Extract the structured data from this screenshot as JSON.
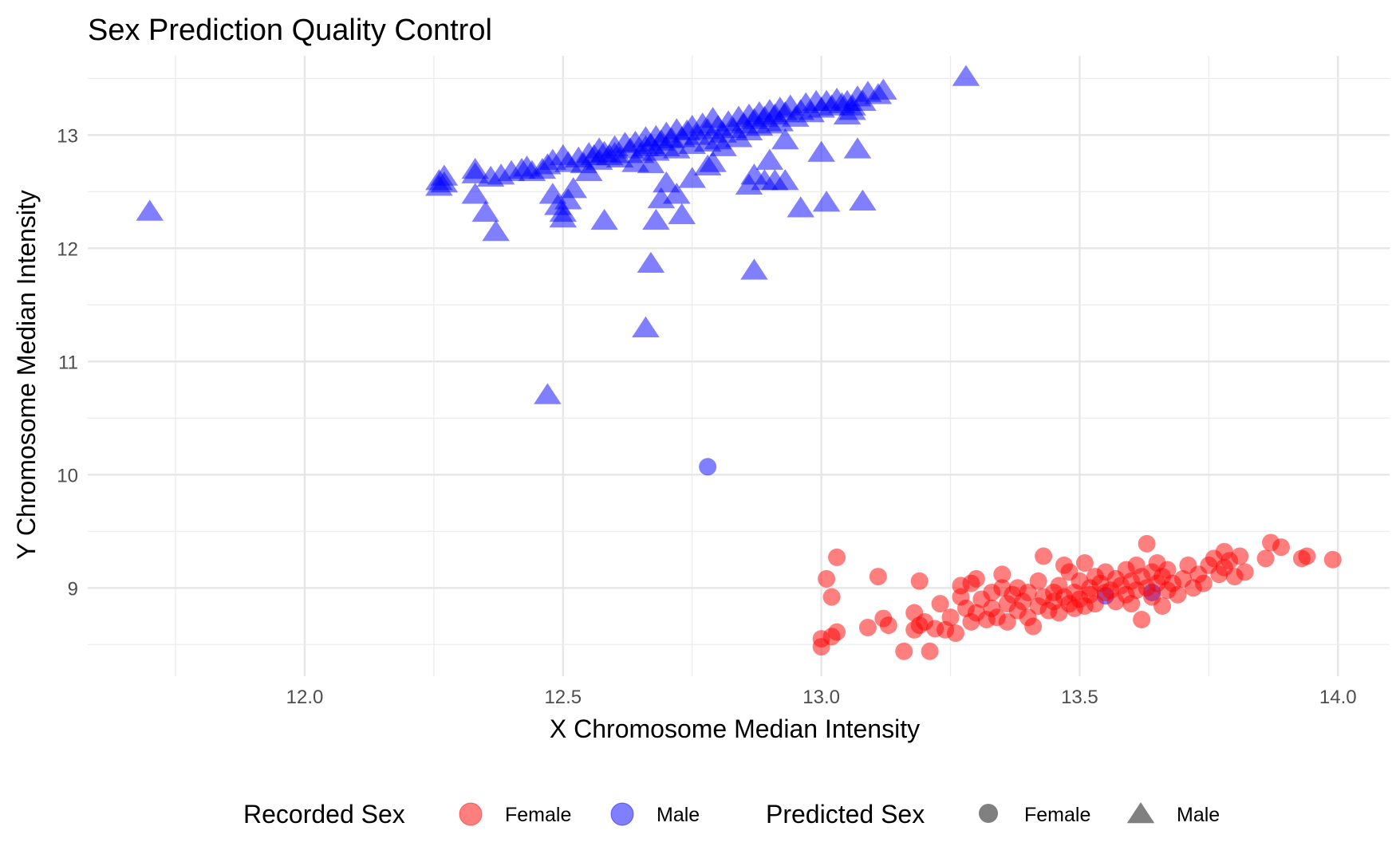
{
  "chart_data": {
    "type": "scatter",
    "title": "Sex Prediction Quality Control",
    "xlabel": "X Chromosome Median Intensity",
    "ylabel": "Y Chromosome Median Intensity",
    "xlim": [
      11.58,
      14.1
    ],
    "ylim": [
      8.22,
      13.7
    ],
    "x_ticks": [
      "12.0",
      "12.5",
      "13.0",
      "13.5",
      "14.0"
    ],
    "y_ticks": [
      "9",
      "10",
      "11",
      "12",
      "13"
    ],
    "x_tick_values": [
      12.0,
      12.5,
      13.0,
      13.5,
      14.0
    ],
    "y_tick_values": [
      9,
      10,
      11,
      12,
      13
    ],
    "grid": true,
    "legend_position": "bottom",
    "legends": [
      {
        "title": "Recorded Sex",
        "entries": [
          {
            "label": "Female",
            "color": "#ff0000",
            "shape": "circle"
          },
          {
            "label": "Male",
            "color": "#0000ff",
            "shape": "circle"
          }
        ]
      },
      {
        "title": "Predicted Sex",
        "entries": [
          {
            "label": "Female",
            "color": "#808080",
            "shape": "circle"
          },
          {
            "label": "Male",
            "color": "#808080",
            "shape": "triangle"
          }
        ]
      }
    ],
    "series": [
      {
        "recorded": "Male",
        "predicted": "Male",
        "color": "#0000ff",
        "shape": "triangle",
        "points": [
          [
            11.7,
            12.33
          ],
          [
            12.26,
            12.55
          ],
          [
            12.26,
            12.6
          ],
          [
            12.27,
            12.58
          ],
          [
            12.27,
            12.64
          ],
          [
            12.33,
            12.48
          ],
          [
            12.33,
            12.66
          ],
          [
            12.33,
            12.7
          ],
          [
            12.35,
            12.32
          ],
          [
            12.37,
            12.15
          ],
          [
            12.36,
            12.63
          ],
          [
            12.38,
            12.65
          ],
          [
            12.4,
            12.68
          ],
          [
            12.42,
            12.7
          ],
          [
            12.43,
            12.72
          ],
          [
            12.44,
            12.68
          ],
          [
            12.46,
            12.7
          ],
          [
            12.47,
            12.74
          ],
          [
            12.48,
            12.78
          ],
          [
            12.48,
            12.48
          ],
          [
            12.49,
            12.38
          ],
          [
            12.5,
            12.27
          ],
          [
            12.5,
            12.32
          ],
          [
            12.5,
            12.82
          ],
          [
            12.51,
            12.43
          ],
          [
            12.51,
            12.76
          ],
          [
            12.52,
            12.53
          ],
          [
            12.53,
            12.8
          ],
          [
            12.54,
            12.75
          ],
          [
            12.55,
            12.84
          ],
          [
            12.55,
            12.68
          ],
          [
            12.56,
            12.82
          ],
          [
            12.57,
            12.88
          ],
          [
            12.57,
            12.78
          ],
          [
            12.58,
            12.85
          ],
          [
            12.59,
            12.82
          ],
          [
            12.6,
            12.9
          ],
          [
            12.6,
            12.84
          ],
          [
            12.61,
            12.8
          ],
          [
            12.62,
            12.93
          ],
          [
            12.63,
            12.88
          ],
          [
            12.64,
            12.76
          ],
          [
            12.64,
            12.94
          ],
          [
            12.65,
            12.84
          ],
          [
            12.66,
            12.98
          ],
          [
            12.66,
            12.9
          ],
          [
            12.67,
            12.75
          ],
          [
            12.67,
            12.92
          ],
          [
            12.68,
            12.99
          ],
          [
            12.68,
            12.86
          ],
          [
            12.69,
            12.95
          ],
          [
            12.7,
            12.9
          ],
          [
            12.7,
            13.02
          ],
          [
            12.71,
            12.97
          ],
          [
            12.72,
            13.05
          ],
          [
            12.72,
            12.88
          ],
          [
            12.73,
            12.98
          ],
          [
            12.74,
            13.04
          ],
          [
            12.75,
            13.08
          ],
          [
            12.75,
            12.92
          ],
          [
            12.76,
            13.0
          ],
          [
            12.77,
            13.1
          ],
          [
            12.78,
            13.05
          ],
          [
            12.78,
            12.94
          ],
          [
            12.79,
            13.15
          ],
          [
            12.8,
            13.08
          ],
          [
            12.8,
            12.96
          ],
          [
            12.81,
            13.02
          ],
          [
            12.82,
            13.12
          ],
          [
            12.83,
            13.06
          ],
          [
            12.84,
            13.16
          ],
          [
            12.84,
            12.98
          ],
          [
            12.85,
            13.1
          ],
          [
            12.86,
            13.18
          ],
          [
            12.86,
            13.04
          ],
          [
            12.87,
            13.14
          ],
          [
            12.88,
            13.2
          ],
          [
            12.88,
            13.08
          ],
          [
            12.89,
            13.16
          ],
          [
            12.9,
            13.22
          ],
          [
            12.9,
            13.1
          ],
          [
            12.91,
            13.18
          ],
          [
            12.92,
            13.24
          ],
          [
            12.92,
            13.12
          ],
          [
            12.93,
            13.2
          ],
          [
            12.94,
            13.26
          ],
          [
            12.95,
            13.16
          ],
          [
            12.96,
            13.22
          ],
          [
            12.97,
            13.28
          ],
          [
            12.98,
            13.2
          ],
          [
            12.99,
            13.3
          ],
          [
            13.0,
            13.24
          ],
          [
            13.01,
            13.3
          ],
          [
            13.02,
            13.26
          ],
          [
            13.03,
            13.32
          ],
          [
            13.04,
            13.28
          ],
          [
            13.05,
            13.3
          ],
          [
            13.06,
            13.26
          ],
          [
            13.07,
            13.34
          ],
          [
            13.08,
            13.3
          ],
          [
            13.09,
            13.38
          ],
          [
            13.11,
            13.36
          ],
          [
            13.12,
            13.4
          ],
          [
            13.28,
            13.52
          ],
          [
            12.58,
            12.25
          ],
          [
            12.66,
            11.3
          ],
          [
            12.67,
            11.87
          ],
          [
            12.68,
            12.25
          ],
          [
            12.69,
            12.44
          ],
          [
            12.7,
            12.58
          ],
          [
            12.72,
            12.48
          ],
          [
            12.73,
            12.3
          ],
          [
            12.75,
            12.62
          ],
          [
            12.78,
            12.73
          ],
          [
            12.79,
            12.76
          ],
          [
            12.81,
            12.9
          ],
          [
            12.87,
            11.81
          ],
          [
            12.86,
            12.56
          ],
          [
            12.87,
            12.65
          ],
          [
            12.89,
            12.6
          ],
          [
            12.9,
            12.78
          ],
          [
            12.91,
            12.6
          ],
          [
            12.93,
            12.96
          ],
          [
            12.96,
            12.36
          ],
          [
            13.0,
            12.85
          ],
          [
            13.01,
            12.41
          ],
          [
            13.05,
            13.18
          ],
          [
            13.06,
            13.22
          ],
          [
            13.07,
            12.88
          ],
          [
            13.08,
            12.42
          ],
          [
            12.47,
            10.71
          ],
          [
            12.93,
            12.6
          ]
        ]
      },
      {
        "recorded": "Male",
        "predicted": "Female",
        "color": "#0000ff",
        "shape": "circle",
        "points": [
          [
            12.78,
            10.07
          ],
          [
            13.55,
            8.93
          ],
          [
            13.64,
            8.96
          ]
        ]
      },
      {
        "recorded": "Female",
        "predicted": "Female",
        "color": "#ff0000",
        "shape": "circle",
        "points": [
          [
            13.0,
            8.48
          ],
          [
            13.0,
            8.55
          ],
          [
            13.01,
            9.08
          ],
          [
            13.02,
            8.92
          ],
          [
            13.02,
            8.57
          ],
          [
            13.03,
            9.27
          ],
          [
            13.03,
            8.61
          ],
          [
            13.09,
            8.65
          ],
          [
            13.11,
            9.1
          ],
          [
            13.12,
            8.73
          ],
          [
            13.13,
            8.67
          ],
          [
            13.16,
            8.44
          ],
          [
            13.18,
            8.63
          ],
          [
            13.18,
            8.78
          ],
          [
            13.19,
            8.67
          ],
          [
            13.19,
            9.06
          ],
          [
            13.2,
            8.7
          ],
          [
            13.21,
            8.44
          ],
          [
            13.22,
            8.64
          ],
          [
            13.23,
            8.86
          ],
          [
            13.24,
            8.63
          ],
          [
            13.25,
            8.74
          ],
          [
            13.26,
            8.6
          ],
          [
            13.27,
            8.92
          ],
          [
            13.27,
            9.02
          ],
          [
            13.28,
            8.82
          ],
          [
            13.29,
            9.04
          ],
          [
            13.29,
            8.7
          ],
          [
            13.3,
            9.08
          ],
          [
            13.3,
            8.78
          ],
          [
            13.31,
            8.9
          ],
          [
            13.32,
            8.72
          ],
          [
            13.33,
            8.96
          ],
          [
            13.33,
            8.82
          ],
          [
            13.34,
            8.74
          ],
          [
            13.35,
            9.0
          ],
          [
            13.35,
            9.12
          ],
          [
            13.36,
            8.86
          ],
          [
            13.36,
            8.7
          ],
          [
            13.37,
            8.94
          ],
          [
            13.38,
            9.0
          ],
          [
            13.38,
            8.8
          ],
          [
            13.39,
            8.88
          ],
          [
            13.4,
            8.74
          ],
          [
            13.4,
            8.96
          ],
          [
            13.41,
            8.66
          ],
          [
            13.42,
            8.84
          ],
          [
            13.42,
            9.06
          ],
          [
            13.43,
            8.92
          ],
          [
            13.43,
            9.28
          ],
          [
            13.44,
            8.8
          ],
          [
            13.45,
            8.96
          ],
          [
            13.45,
            8.88
          ],
          [
            13.46,
            9.02
          ],
          [
            13.46,
            8.78
          ],
          [
            13.47,
            8.92
          ],
          [
            13.47,
            9.2
          ],
          [
            13.48,
            8.86
          ],
          [
            13.48,
            9.14
          ],
          [
            13.49,
            8.96
          ],
          [
            13.49,
            8.82
          ],
          [
            13.5,
            9.06
          ],
          [
            13.5,
            8.9
          ],
          [
            13.51,
            9.22
          ],
          [
            13.51,
            8.84
          ],
          [
            13.52,
            9.0
          ],
          [
            13.52,
            8.94
          ],
          [
            13.53,
            9.1
          ],
          [
            13.53,
            8.86
          ],
          [
            13.54,
            9.04
          ],
          [
            13.55,
            8.96
          ],
          [
            13.55,
            9.14
          ],
          [
            13.56,
            8.98
          ],
          [
            13.57,
            9.08
          ],
          [
            13.57,
            8.88
          ],
          [
            13.58,
            9.02
          ],
          [
            13.59,
            9.16
          ],
          [
            13.59,
            8.94
          ],
          [
            13.6,
            9.06
          ],
          [
            13.6,
            8.86
          ],
          [
            13.61,
            8.98
          ],
          [
            13.61,
            9.2
          ],
          [
            13.62,
            9.1
          ],
          [
            13.62,
            8.72
          ],
          [
            13.63,
            9.39
          ],
          [
            13.63,
            9.0
          ],
          [
            13.64,
            9.14
          ],
          [
            13.64,
            8.92
          ],
          [
            13.65,
            9.22
          ],
          [
            13.65,
            9.04
          ],
          [
            13.66,
            8.84
          ],
          [
            13.66,
            9.1
          ],
          [
            13.67,
            8.98
          ],
          [
            13.67,
            9.16
          ],
          [
            13.68,
            9.04
          ],
          [
            13.69,
            8.94
          ],
          [
            13.7,
            9.08
          ],
          [
            13.71,
            9.2
          ],
          [
            13.72,
            9.0
          ],
          [
            13.73,
            9.12
          ],
          [
            13.74,
            9.04
          ],
          [
            13.75,
            9.2
          ],
          [
            13.76,
            9.26
          ],
          [
            13.77,
            9.12
          ],
          [
            13.78,
            9.32
          ],
          [
            13.78,
            9.18
          ],
          [
            13.79,
            9.24
          ],
          [
            13.8,
            9.1
          ],
          [
            13.81,
            9.28
          ],
          [
            13.82,
            9.14
          ],
          [
            13.86,
            9.26
          ],
          [
            13.87,
            9.4
          ],
          [
            13.89,
            9.36
          ],
          [
            13.93,
            9.26
          ],
          [
            13.94,
            9.28
          ],
          [
            13.99,
            9.25
          ]
        ]
      }
    ]
  },
  "colors": {
    "female": "#ff0000",
    "male": "#0000ff",
    "predicted_key": "#808080",
    "grid": "#e6e6e6",
    "tick_text": "#4d4d4d"
  }
}
